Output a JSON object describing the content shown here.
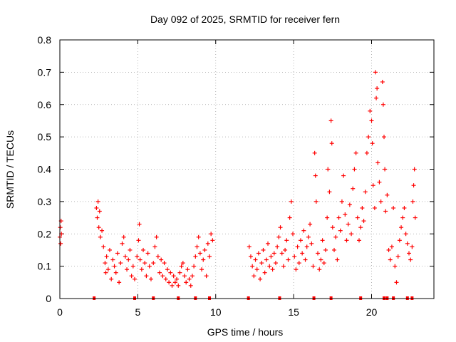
{
  "chart_data": {
    "type": "scatter",
    "title": "Day 092 of 2025, SRMTID for receiver fern",
    "xlabel": "GPS time / hours",
    "ylabel": "SRMTID / TECUs",
    "xlim": [
      0,
      24
    ],
    "ylim": [
      0,
      0.8
    ],
    "x_ticks": [
      0,
      5,
      10,
      15,
      20
    ],
    "x_tick_labels": [
      "0",
      "5",
      "10",
      "15",
      "20"
    ],
    "y_ticks": [
      0,
      0.1,
      0.2,
      0.3,
      0.4,
      0.5,
      0.6,
      0.7,
      0.8
    ],
    "y_tick_labels": [
      "0",
      "0.1",
      "0.2",
      "0.3",
      "0.4",
      "0.5",
      "0.6",
      "0.7",
      "0.8"
    ],
    "grid": true,
    "marker": "plus",
    "series_color": "#ff0000",
    "zero_markers_x": [
      2.2,
      4.8,
      6.0,
      7.6,
      8.7,
      9.6,
      12.1,
      14.1,
      16.3,
      17.4,
      19.3,
      20.8,
      21.0,
      21.4,
      22.3,
      22.6
    ],
    "series": [
      {
        "name": "SRMTID",
        "points": [
          [
            0.0,
            0.19
          ],
          [
            0.03,
            0.22
          ],
          [
            0.05,
            0.17
          ],
          [
            0.08,
            0.24
          ],
          [
            0.1,
            0.2
          ],
          [
            2.35,
            0.28
          ],
          [
            2.4,
            0.25
          ],
          [
            2.45,
            0.3
          ],
          [
            2.5,
            0.22
          ],
          [
            2.55,
            0.27
          ],
          [
            2.6,
            0.19
          ],
          [
            2.7,
            0.21
          ],
          [
            2.8,
            0.16
          ],
          [
            2.9,
            0.11
          ],
          [
            2.95,
            0.08
          ],
          [
            3.0,
            0.13
          ],
          [
            3.1,
            0.09
          ],
          [
            3.2,
            0.15
          ],
          [
            3.3,
            0.06
          ],
          [
            3.4,
            0.12
          ],
          [
            3.5,
            0.1
          ],
          [
            3.6,
            0.08
          ],
          [
            3.7,
            0.14
          ],
          [
            3.8,
            0.05
          ],
          [
            3.9,
            0.11
          ],
          [
            4.0,
            0.17
          ],
          [
            4.1,
            0.19
          ],
          [
            4.2,
            0.13
          ],
          [
            4.3,
            0.09
          ],
          [
            4.4,
            0.12
          ],
          [
            4.5,
            0.15
          ],
          [
            4.6,
            0.07
          ],
          [
            4.7,
            0.1
          ],
          [
            4.8,
            0.06
          ],
          [
            4.95,
            0.13
          ],
          [
            5.05,
            0.18
          ],
          [
            5.1,
            0.23
          ],
          [
            5.15,
            0.12
          ],
          [
            5.25,
            0.09
          ],
          [
            5.35,
            0.15
          ],
          [
            5.45,
            0.11
          ],
          [
            5.55,
            0.07
          ],
          [
            5.65,
            0.14
          ],
          [
            5.75,
            0.1
          ],
          [
            5.85,
            0.06
          ],
          [
            6.0,
            0.11
          ],
          [
            6.1,
            0.16
          ],
          [
            6.2,
            0.19
          ],
          [
            6.3,
            0.13
          ],
          [
            6.4,
            0.08
          ],
          [
            6.5,
            0.12
          ],
          [
            6.6,
            0.07
          ],
          [
            6.7,
            0.11
          ],
          [
            6.8,
            0.06
          ],
          [
            6.9,
            0.09
          ],
          [
            7.0,
            0.05
          ],
          [
            7.1,
            0.08
          ],
          [
            7.2,
            0.04
          ],
          [
            7.3,
            0.07
          ],
          [
            7.4,
            0.05
          ],
          [
            7.5,
            0.06
          ],
          [
            7.6,
            0.04
          ],
          [
            7.7,
            0.08
          ],
          [
            7.8,
            0.1
          ],
          [
            7.9,
            0.11
          ],
          [
            8.0,
            0.07
          ],
          [
            8.1,
            0.05
          ],
          [
            8.2,
            0.09
          ],
          [
            8.3,
            0.06
          ],
          [
            8.4,
            0.04
          ],
          [
            8.5,
            0.07
          ],
          [
            8.6,
            0.1
          ],
          [
            8.7,
            0.13
          ],
          [
            8.8,
            0.16
          ],
          [
            8.9,
            0.19
          ],
          [
            9.0,
            0.14
          ],
          [
            9.1,
            0.09
          ],
          [
            9.2,
            0.12
          ],
          [
            9.3,
            0.15
          ],
          [
            9.4,
            0.07
          ],
          [
            9.5,
            0.17
          ],
          [
            9.6,
            0.13
          ],
          [
            9.7,
            0.2
          ],
          [
            9.8,
            0.18
          ],
          [
            12.15,
            0.16
          ],
          [
            12.25,
            0.13
          ],
          [
            12.35,
            0.1
          ],
          [
            12.45,
            0.07
          ],
          [
            12.55,
            0.12
          ],
          [
            12.65,
            0.09
          ],
          [
            12.75,
            0.14
          ],
          [
            12.85,
            0.06
          ],
          [
            12.95,
            0.11
          ],
          [
            13.05,
            0.15
          ],
          [
            13.15,
            0.08
          ],
          [
            13.25,
            0.12
          ],
          [
            13.35,
            0.17
          ],
          [
            13.45,
            0.1
          ],
          [
            13.55,
            0.13
          ],
          [
            13.65,
            0.09
          ],
          [
            13.75,
            0.14
          ],
          [
            13.85,
            0.11
          ],
          [
            13.95,
            0.16
          ],
          [
            14.05,
            0.19
          ],
          [
            14.15,
            0.22
          ],
          [
            14.25,
            0.14
          ],
          [
            14.35,
            0.1
          ],
          [
            14.45,
            0.15
          ],
          [
            14.55,
            0.18
          ],
          [
            14.65,
            0.12
          ],
          [
            14.75,
            0.25
          ],
          [
            14.85,
            0.3
          ],
          [
            14.95,
            0.2
          ],
          [
            15.05,
            0.13
          ],
          [
            15.15,
            0.09
          ],
          [
            15.25,
            0.16
          ],
          [
            15.35,
            0.11
          ],
          [
            15.45,
            0.18
          ],
          [
            15.55,
            0.14
          ],
          [
            15.65,
            0.21
          ],
          [
            15.75,
            0.12
          ],
          [
            15.85,
            0.16
          ],
          [
            15.95,
            0.19
          ],
          [
            16.05,
            0.23
          ],
          [
            16.15,
            0.17
          ],
          [
            16.25,
            0.1
          ],
          [
            16.35,
            0.45
          ],
          [
            16.4,
            0.38
          ],
          [
            16.45,
            0.3
          ],
          [
            16.55,
            0.14
          ],
          [
            16.65,
            0.09
          ],
          [
            16.75,
            0.12
          ],
          [
            16.85,
            0.18
          ],
          [
            16.95,
            0.11
          ],
          [
            17.05,
            0.15
          ],
          [
            17.15,
            0.25
          ],
          [
            17.2,
            0.4
          ],
          [
            17.3,
            0.33
          ],
          [
            17.4,
            0.55
          ],
          [
            17.45,
            0.48
          ],
          [
            17.5,
            0.22
          ],
          [
            17.6,
            0.15
          ],
          [
            17.7,
            0.19
          ],
          [
            17.8,
            0.12
          ],
          [
            17.9,
            0.25
          ],
          [
            18.0,
            0.21
          ],
          [
            18.1,
            0.3
          ],
          [
            18.2,
            0.38
          ],
          [
            18.3,
            0.26
          ],
          [
            18.4,
            0.18
          ],
          [
            18.5,
            0.23
          ],
          [
            18.6,
            0.29
          ],
          [
            18.7,
            0.2
          ],
          [
            18.8,
            0.34
          ],
          [
            18.9,
            0.4
          ],
          [
            19.0,
            0.45
          ],
          [
            19.1,
            0.25
          ],
          [
            19.2,
            0.18
          ],
          [
            19.3,
            0.22
          ],
          [
            19.4,
            0.28
          ],
          [
            19.5,
            0.24
          ],
          [
            19.6,
            0.33
          ],
          [
            19.7,
            0.45
          ],
          [
            19.8,
            0.5
          ],
          [
            19.9,
            0.58
          ],
          [
            20.0,
            0.55
          ],
          [
            20.05,
            0.48
          ],
          [
            20.1,
            0.35
          ],
          [
            20.2,
            0.28
          ],
          [
            20.25,
            0.7
          ],
          [
            20.3,
            0.62
          ],
          [
            20.35,
            0.65
          ],
          [
            20.4,
            0.42
          ],
          [
            20.5,
            0.36
          ],
          [
            20.6,
            0.3
          ],
          [
            20.7,
            0.67
          ],
          [
            20.75,
            0.6
          ],
          [
            20.8,
            0.5
          ],
          [
            20.85,
            0.4
          ],
          [
            20.9,
            0.27
          ],
          [
            21.0,
            0.32
          ],
          [
            21.1,
            0.15
          ],
          [
            21.2,
            0.12
          ],
          [
            21.3,
            0.16
          ],
          [
            21.4,
            0.28
          ],
          [
            21.5,
            0.1
          ],
          [
            21.6,
            0.05
          ],
          [
            21.7,
            0.13
          ],
          [
            21.8,
            0.18
          ],
          [
            21.9,
            0.22
          ],
          [
            22.0,
            0.25
          ],
          [
            22.1,
            0.28
          ],
          [
            22.2,
            0.2
          ],
          [
            22.3,
            0.17
          ],
          [
            22.4,
            0.14
          ],
          [
            22.5,
            0.12
          ],
          [
            22.6,
            0.16
          ],
          [
            22.65,
            0.3
          ],
          [
            22.7,
            0.35
          ],
          [
            22.75,
            0.4
          ],
          [
            22.8,
            0.25
          ]
        ]
      }
    ]
  }
}
